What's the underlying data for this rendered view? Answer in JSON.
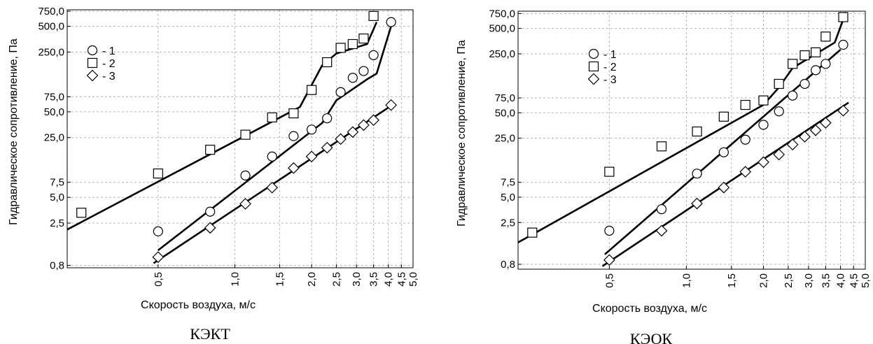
{
  "chart_data": [
    {
      "type": "scatter",
      "title": "",
      "caption": "КЭКТ",
      "xlabel": "Скорость воздуха, м/с",
      "ylabel": "Гидравлическое сопротивление, Па",
      "xscale": "log",
      "yscale": "log",
      "grid": true,
      "legend_position": "top-left",
      "xlim": [
        0.22,
        5.0
      ],
      "ylim": [
        0.75,
        780
      ],
      "xticks": [
        0.5,
        1.0,
        1.5,
        2.0,
        2.5,
        3.0,
        3.5,
        4.0,
        4.5,
        5.0
      ],
      "xtick_labels": [
        "0,5",
        "1,0",
        "1,5",
        "2,0",
        "2,5",
        "3,0",
        "3,5",
        "4,0",
        "4,5",
        "5,0"
      ],
      "yticks": [
        0.8,
        2.5,
        5.0,
        7.5,
        25.0,
        50.0,
        75.0,
        250.0,
        500.0,
        750.0
      ],
      "ytick_labels": [
        "0,8",
        "2,5",
        "5,0",
        "7,5",
        "25,0",
        "50,0",
        "75,0",
        "250,0",
        "500,0",
        "750,0"
      ],
      "series": [
        {
          "name": "- 1",
          "marker": "circle",
          "points": [
            [
              0.5,
              2.0
            ],
            [
              0.8,
              3.4
            ],
            [
              1.1,
              9.0
            ],
            [
              1.4,
              15.0
            ],
            [
              1.7,
              26.0
            ],
            [
              2.0,
              31.0
            ],
            [
              2.3,
              42.0
            ],
            [
              2.6,
              85.0
            ],
            [
              2.9,
              125.0
            ],
            [
              3.2,
              150.0
            ],
            [
              3.5,
              230.0
            ],
            [
              4.1,
              560.0
            ]
          ],
          "fit": [
            [
              0.5,
              1.2
            ],
            [
              2.2,
              37.0
            ],
            [
              2.5,
              68.0
            ],
            [
              3.3,
              120.0
            ],
            [
              3.6,
              140.0
            ],
            [
              4.1,
              500.0
            ]
          ]
        },
        {
          "name": "- 2",
          "marker": "square",
          "points": [
            [
              0.25,
              3.3
            ],
            [
              0.5,
              9.5
            ],
            [
              0.8,
              18.0
            ],
            [
              1.1,
              27.0
            ],
            [
              1.4,
              43.0
            ],
            [
              1.7,
              48.0
            ],
            [
              2.0,
              90.0
            ],
            [
              2.3,
              190.0
            ],
            [
              2.6,
              280.0
            ],
            [
              2.9,
              310.0
            ],
            [
              3.2,
              360.0
            ],
            [
              3.5,
              660.0
            ]
          ],
          "fit": [
            [
              0.22,
              2.1
            ],
            [
              1.8,
              57.0
            ],
            [
              2.2,
              175.0
            ],
            [
              2.5,
              240.0
            ],
            [
              3.3,
              310.0
            ],
            [
              3.6,
              560.0
            ]
          ]
        },
        {
          "name": "- 3",
          "marker": "diamond",
          "points": [
            [
              0.5,
              1.0
            ],
            [
              0.8,
              2.2
            ],
            [
              1.1,
              4.2
            ],
            [
              1.4,
              6.5
            ],
            [
              1.7,
              11.0
            ],
            [
              2.0,
              15.0
            ],
            [
              2.3,
              19.0
            ],
            [
              2.6,
              24.0
            ],
            [
              2.9,
              29.0
            ],
            [
              3.2,
              35.0
            ],
            [
              3.5,
              40.0
            ],
            [
              4.1,
              60.0
            ]
          ],
          "fit": [
            [
              0.48,
              0.85
            ],
            [
              4.0,
              56.0
            ]
          ]
        }
      ]
    },
    {
      "type": "scatter",
      "title": "",
      "caption": "КЭОК",
      "xlabel": "Скорость воздуха, м/с",
      "ylabel": "Гидравлическое сопротивление, Па",
      "xscale": "log",
      "yscale": "log",
      "grid": true,
      "legend_position": "top-left",
      "xlim": [
        0.22,
        5.0
      ],
      "ylim": [
        0.7,
        800
      ],
      "xticks": [
        0.5,
        1.0,
        1.5,
        2.0,
        2.5,
        3.0,
        3.5,
        4.0,
        4.5,
        5.0
      ],
      "xtick_labels": [
        "0,5",
        "1,0",
        "1,5",
        "2,0",
        "2,5",
        "3,0",
        "3,5",
        "4,0",
        "4,5",
        "5,0"
      ],
      "yticks": [
        0.8,
        2.5,
        5.0,
        7.5,
        25.0,
        50.0,
        75.0,
        250.0,
        500.0,
        750.0
      ],
      "ytick_labels": [
        "0,8",
        "2,5",
        "5,0",
        "7,5",
        "25,0",
        "50,0",
        "75,0",
        "250,0",
        "500,0",
        "750,0"
      ],
      "series": [
        {
          "name": "- 1",
          "marker": "circle",
          "points": [
            [
              0.5,
              2.0
            ],
            [
              0.8,
              3.6
            ],
            [
              1.1,
              9.5
            ],
            [
              1.4,
              17.0
            ],
            [
              1.7,
              24.0
            ],
            [
              2.0,
              36.0
            ],
            [
              2.3,
              52.0
            ],
            [
              2.6,
              80.0
            ],
            [
              2.9,
              110.0
            ],
            [
              3.2,
              160.0
            ],
            [
              3.5,
              190.0
            ],
            [
              4.1,
              320.0
            ]
          ],
          "fit": [
            [
              0.48,
              1.05
            ],
            [
              4.0,
              280.0
            ]
          ]
        },
        {
          "name": "- 2",
          "marker": "square",
          "points": [
            [
              0.25,
              1.9
            ],
            [
              0.5,
              10.0
            ],
            [
              0.8,
              20.0
            ],
            [
              1.1,
              30.0
            ],
            [
              1.4,
              45.0
            ],
            [
              1.7,
              62.0
            ],
            [
              2.0,
              70.0
            ],
            [
              2.3,
              110.0
            ],
            [
              2.6,
              190.0
            ],
            [
              2.9,
              240.0
            ],
            [
              3.2,
              260.0
            ],
            [
              3.5,
              400.0
            ],
            [
              4.1,
              680.0
            ]
          ],
          "fit": [
            [
              0.22,
              1.45
            ],
            [
              2.0,
              62.0
            ],
            [
              2.3,
              100.0
            ],
            [
              2.6,
              170.0
            ],
            [
              3.8,
              340.0
            ],
            [
              4.2,
              780.0
            ]
          ]
        },
        {
          "name": "- 3",
          "marker": "diamond",
          "points": [
            [
              0.5,
              0.9
            ],
            [
              0.8,
              2.0
            ],
            [
              1.1,
              4.2
            ],
            [
              1.4,
              6.5
            ],
            [
              1.7,
              10.0
            ],
            [
              2.0,
              13.0
            ],
            [
              2.3,
              16.0
            ],
            [
              2.6,
              21.0
            ],
            [
              2.9,
              26.0
            ],
            [
              3.2,
              31.0
            ],
            [
              3.5,
              38.0
            ],
            [
              4.1,
              53.0
            ]
          ],
          "fit": [
            [
              0.47,
              0.76
            ],
            [
              4.3,
              66.0
            ]
          ]
        }
      ]
    }
  ]
}
